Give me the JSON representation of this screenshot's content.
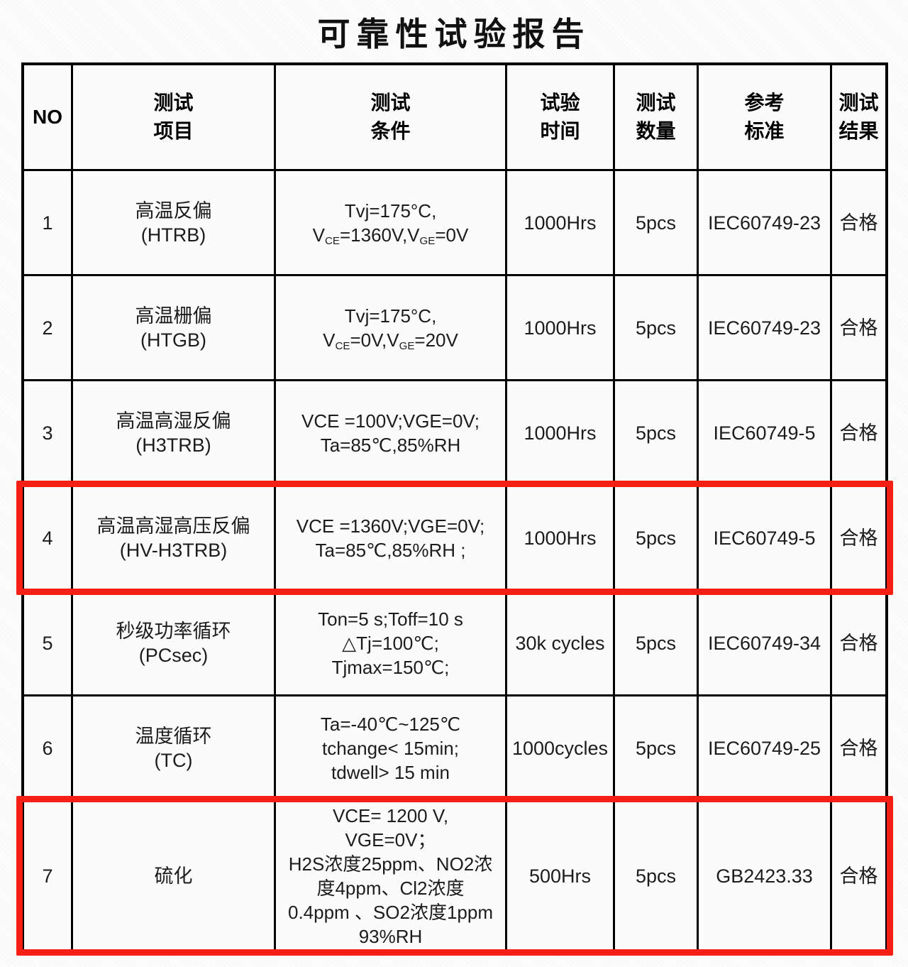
{
  "title": "可靠性试验报告",
  "colors": {
    "highlight_red": "#f52013",
    "line_black": "#000000"
  },
  "header": {
    "no_label": "NO",
    "cols": [
      {
        "key": "item",
        "lines": [
          "测试",
          "项目"
        ]
      },
      {
        "key": "cond",
        "lines": [
          "测试",
          "条件"
        ]
      },
      {
        "key": "time",
        "lines": [
          "试验",
          "时间"
        ]
      },
      {
        "key": "qty",
        "lines": [
          "测试",
          "数量"
        ]
      },
      {
        "key": "standard",
        "lines": [
          "参考",
          "标准"
        ]
      },
      {
        "key": "result",
        "lines": [
          "测试",
          "结果"
        ]
      }
    ]
  },
  "rows": [
    {
      "no": "1",
      "item": [
        "高温反偏",
        "(HTRB)"
      ],
      "cond": [
        [
          "Tvj=175°C,"
        ],
        [
          "V",
          {
            "sub": "CE"
          },
          "=1360V,V",
          {
            "sub": "GE"
          },
          "=0V"
        ]
      ],
      "time": "1000Hrs",
      "qty": "5pcs",
      "standard": "IEC60749-23",
      "result": "合格",
      "highlight": false
    },
    {
      "no": "2",
      "item": [
        "高温栅偏",
        "(HTGB)"
      ],
      "cond": [
        [
          "Tvj=175°C,"
        ],
        [
          "V",
          {
            "sub": "CE"
          },
          "=0V,V",
          {
            "sub": "GE"
          },
          "=20V"
        ]
      ],
      "time": "1000Hrs",
      "qty": "5pcs",
      "standard": "IEC60749-23",
      "result": "合格",
      "highlight": false
    },
    {
      "no": "3",
      "item": [
        "高温高湿反偏",
        "(H3TRB)"
      ],
      "cond": [
        [
          "VCE =100V;VGE=0V;"
        ],
        [
          "Ta=85℃,85%RH"
        ]
      ],
      "time": "1000Hrs",
      "qty": "5pcs",
      "standard": "IEC60749-5",
      "result": "合格",
      "highlight": false
    },
    {
      "no": "4",
      "item": [
        "高温高湿高压反偏",
        "(HV-H3TRB)"
      ],
      "cond": [
        [
          "VCE =1360V;VGE=0V;"
        ],
        [
          "Ta=85℃,85%RH ;"
        ]
      ],
      "time": "1000Hrs",
      "qty": "5pcs",
      "standard": "IEC60749-5",
      "result": "合格",
      "highlight": true
    },
    {
      "no": "5",
      "item": [
        "秒级功率循环",
        "(PCsec)"
      ],
      "cond": [
        [
          "Ton=5 s;Toff=10 s"
        ],
        [
          "△Tj=100℃;"
        ],
        [
          "Tjmax=150℃;"
        ]
      ],
      "time": "30k cycles",
      "qty": "5pcs",
      "standard": "IEC60749-34",
      "result": "合格",
      "highlight": false
    },
    {
      "no": "6",
      "item": [
        "温度循环",
        "(TC)"
      ],
      "cond": [
        [
          "Ta=-40℃~125℃"
        ],
        [
          "tchange< 15min;"
        ],
        [
          "tdwell> 15 min"
        ]
      ],
      "time": "1000cycles",
      "qty": "5pcs",
      "standard": "IEC60749-25",
      "result": "合格",
      "highlight": false
    },
    {
      "no": "7",
      "item": [
        "硫化"
      ],
      "cond": [
        [
          "VCE= 1200 V,"
        ],
        [
          "VGE=0V；"
        ],
        [
          "H2S浓度25ppm、NO2浓"
        ],
        [
          "度4ppm、Cl2浓度"
        ],
        [
          "0.4ppm 、SO2浓度1ppm"
        ],
        [
          "93%RH"
        ]
      ],
      "time": "500Hrs",
      "qty": "5pcs",
      "standard": "GB2423.33",
      "result": "合格",
      "highlight": true
    }
  ]
}
